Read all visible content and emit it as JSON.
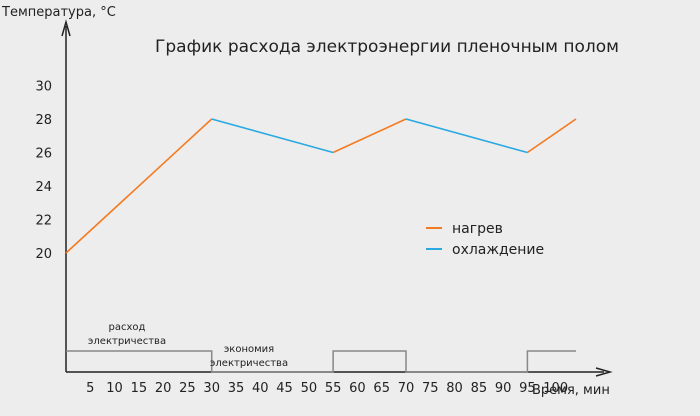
{
  "chart_data": {
    "type": "line",
    "title": "График расхода электроэнергии пленочным полом",
    "ylabel": "Температура, °C",
    "xlabel": "Время, мин",
    "x_ticks": [
      5,
      10,
      15,
      20,
      25,
      30,
      35,
      40,
      45,
      50,
      55,
      60,
      65,
      70,
      75,
      80,
      85,
      90,
      95,
      100
    ],
    "y_ticks": [
      20,
      22,
      24,
      26,
      28,
      30
    ],
    "xlim": [
      0,
      110
    ],
    "ylim": [
      13,
      32
    ],
    "segments": [
      {
        "series": "нагрев",
        "x": [
          0,
          30
        ],
        "y": [
          20,
          28
        ]
      },
      {
        "series": "охлаждение",
        "x": [
          30,
          55
        ],
        "y": [
          28,
          26
        ]
      },
      {
        "series": "нагрев",
        "x": [
          55,
          70
        ],
        "y": [
          26,
          28
        ]
      },
      {
        "series": "охлаждение",
        "x": [
          70,
          95
        ],
        "y": [
          28,
          26
        ]
      },
      {
        "series": "нагрев",
        "x": [
          95,
          105
        ],
        "y": [
          26,
          28
        ]
      }
    ],
    "legend": [
      {
        "name": "нагрев",
        "color": "#f47a20"
      },
      {
        "name": "охлаждение",
        "color": "#29a9e1"
      }
    ],
    "legend_placement": "right",
    "power": {
      "x": [
        0,
        30,
        30,
        55,
        55,
        70,
        70,
        95,
        95,
        105
      ],
      "state": [
        1,
        1,
        0,
        0,
        1,
        1,
        0,
        0,
        1,
        1
      ],
      "color": "#888888"
    },
    "annotations": {
      "consumption": [
        "расход",
        "электричества"
      ],
      "saving": [
        "экономия",
        "электричества"
      ]
    },
    "grid": false
  }
}
